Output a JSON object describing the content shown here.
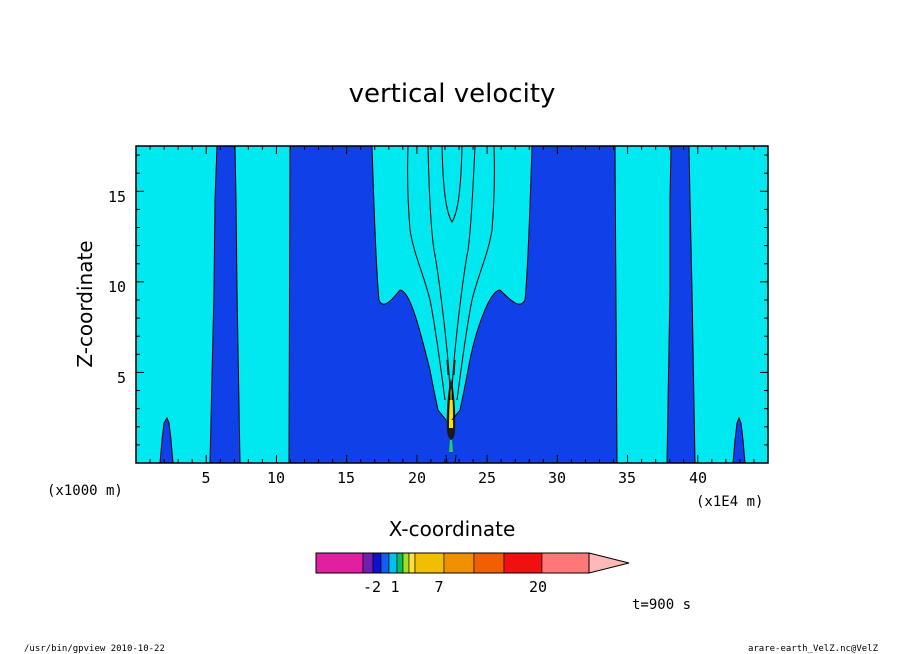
{
  "chart_data": {
    "type": "heatmap",
    "title": "vertical velocity",
    "xlabel": "X-coordinate",
    "ylabel": "Z-coordinate",
    "x_unit": "(x1E4 m)",
    "y_unit": "(x1000 m)",
    "xlim": [
      0,
      45
    ],
    "ylim": [
      0,
      17.5
    ],
    "x_ticks": [
      5,
      10,
      15,
      20,
      25,
      30,
      35,
      40
    ],
    "y_ticks": [
      5,
      10,
      15
    ],
    "colorbar": {
      "colors": [
        "#e020a0",
        "#7020b0",
        "#1010d0",
        "#1060f0",
        "#00c0f0",
        "#00c060",
        "#a0e020",
        "#ffe040",
        "#f0c000",
        "#f09000",
        "#f06000",
        "#f01010",
        "#ff7878",
        "#ffb8b8"
      ],
      "labels": [
        "-2",
        "1",
        "7",
        "20"
      ]
    },
    "field_colors": {
      "low_positive": "#00e8f0",
      "near_zero_negative": "#1040e8",
      "core_high": "#ffe000",
      "core_edge": "#20d060"
    },
    "annotation_time": "t=900 s",
    "footer_left": "/usr/bin/gpview  2010-10-22",
    "footer_right": "arare-earth_VelZ.nc@VelZ"
  }
}
